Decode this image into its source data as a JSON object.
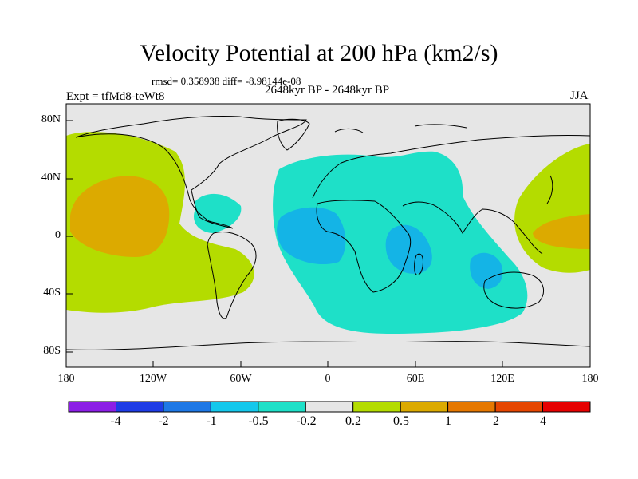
{
  "title": "Velocity Potential at 200 hPa (km2/s)",
  "stats": "rmsd= 0.358938 diff= -8.98144e-08",
  "period": "2648kyr BP - 2648kyr BP",
  "experiment": "Expt = tfMd8-teWt8",
  "season": "JJA",
  "lat_labels": [
    "80N",
    "40N",
    "0",
    "40S",
    "80S"
  ],
  "lon_labels": [
    "180",
    "120W",
    "60W",
    "0",
    "60E",
    "120E",
    "180"
  ],
  "colorbar": {
    "colors": [
      "#8c1ee6",
      "#1e3ce6",
      "#1e78e6",
      "#14c8ec",
      "#1ee0c8",
      "#e6e6e6",
      "#b4dc00",
      "#dcaa00",
      "#e67800",
      "#e64600",
      "#e60000"
    ],
    "labels": [
      "-4",
      "-2",
      "-1",
      "-0.5",
      "-0.2",
      "0.2",
      "0.5",
      "1",
      "2",
      "4"
    ]
  },
  "colors": {
    "background": "#e6e6e6",
    "lightGreen": "#b4dc00",
    "orange": "#dcaa00",
    "cyan": "#1ee0c8",
    "blue": "#14b4e6",
    "coast": "#000000"
  }
}
